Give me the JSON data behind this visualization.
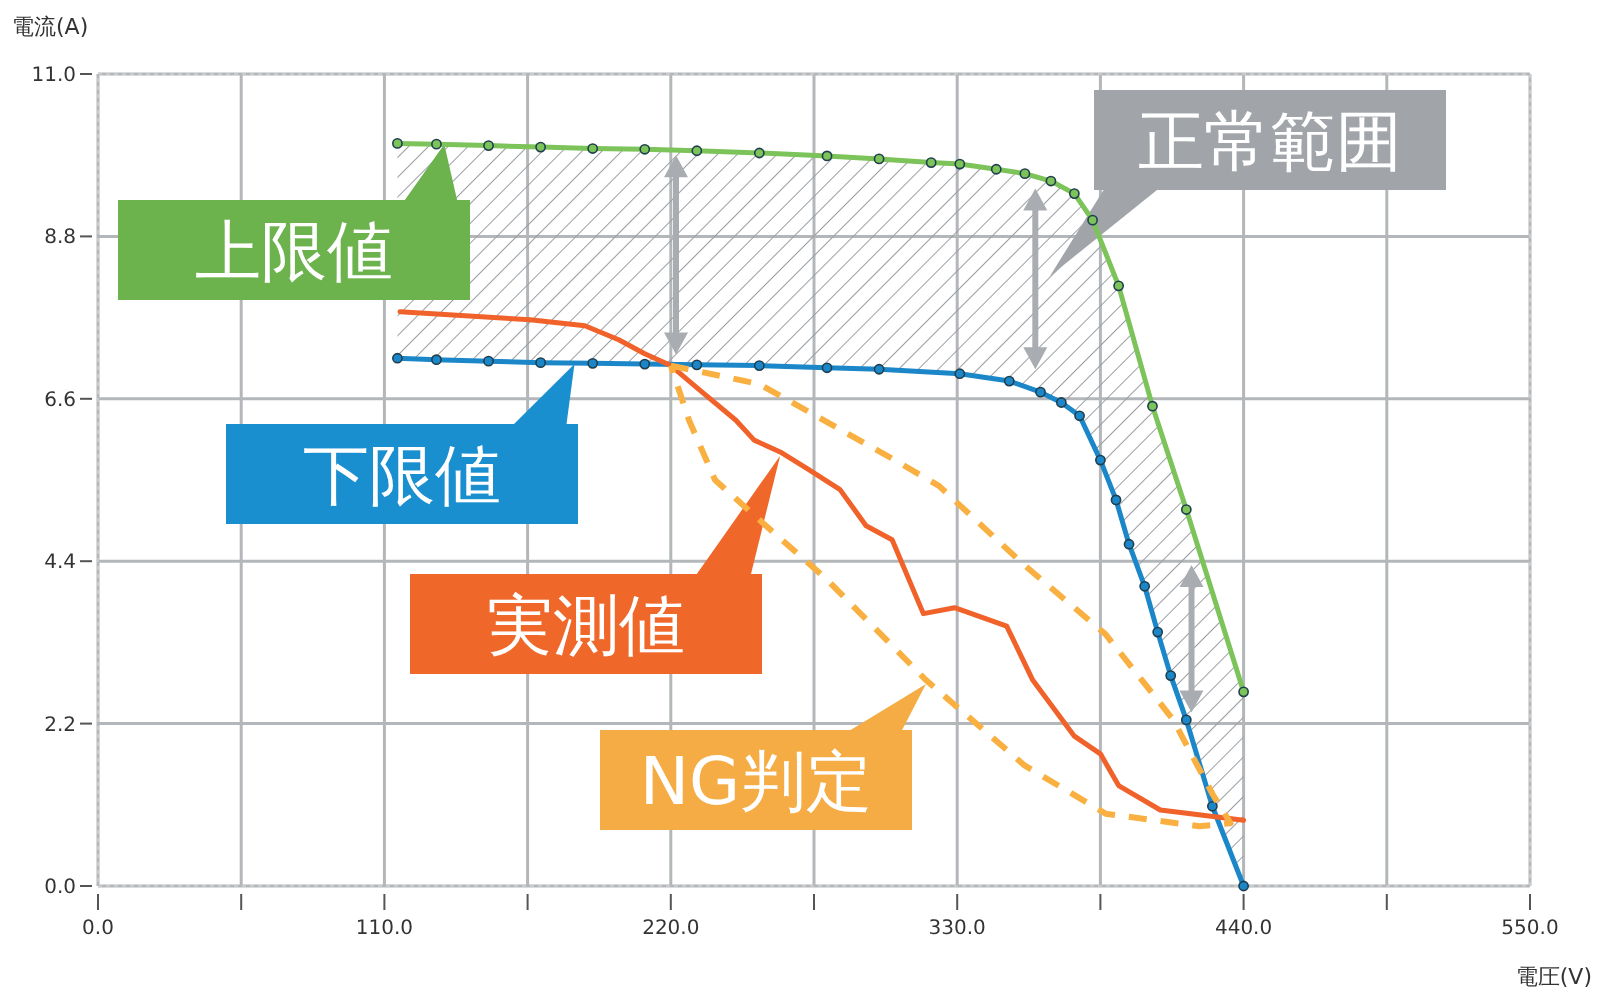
{
  "chart_data": {
    "type": "line",
    "xlabel": "電圧(V)",
    "ylabel": "電流(A)",
    "xlim": [
      0,
      550
    ],
    "ylim": [
      0,
      11
    ],
    "xticks": [
      {
        "value": 0,
        "label": "0.0"
      },
      {
        "value": 55,
        "label": null
      },
      {
        "value": 110,
        "label": "110.0"
      },
      {
        "value": 165,
        "label": null
      },
      {
        "value": 220,
        "label": "220.0"
      },
      {
        "value": 275,
        "label": null
      },
      {
        "value": 330,
        "label": "330.0"
      },
      {
        "value": 385,
        "label": null
      },
      {
        "value": 440,
        "label": "440.0"
      },
      {
        "value": 495,
        "label": null
      },
      {
        "value": 550,
        "label": "550.0"
      }
    ],
    "yticks": [
      {
        "value": 0,
        "label": "0.0"
      },
      {
        "value": 2.2,
        "label": "2.2"
      },
      {
        "value": 4.4,
        "label": "4.4"
      },
      {
        "value": 6.6,
        "label": "6.6"
      },
      {
        "value": 8.8,
        "label": "8.8"
      },
      {
        "value": 11,
        "label": "11.0"
      }
    ],
    "grid": true,
    "series": [
      {
        "color": "#7cc35a",
        "marker": "circle",
        "x": [
          115,
          130,
          150,
          170,
          190,
          210,
          230,
          254,
          280,
          300,
          320,
          331,
          345,
          356,
          366,
          375,
          382,
          392,
          405,
          418,
          440
        ],
        "values": [
          10.06,
          10.05,
          10.03,
          10.01,
          9.99,
          9.98,
          9.96,
          9.93,
          9.89,
          9.85,
          9.8,
          9.78,
          9.71,
          9.65,
          9.55,
          9.38,
          9.02,
          8.13,
          6.5,
          5.1,
          2.63
        ]
      },
      {
        "color": "#1b87c9",
        "marker": "circle",
        "x": [
          115,
          130,
          150,
          170,
          190,
          210,
          230,
          254,
          280,
          300,
          331,
          350,
          362,
          370,
          377,
          385,
          391,
          396,
          402,
          407,
          412,
          418,
          428,
          440
        ],
        "values": [
          7.15,
          7.13,
          7.11,
          7.09,
          7.08,
          7.07,
          7.06,
          7.05,
          7.02,
          7.0,
          6.94,
          6.84,
          6.69,
          6.55,
          6.37,
          5.77,
          5.23,
          4.63,
          4.06,
          3.44,
          2.85,
          2.25,
          1.08,
          0
        ]
      },
      {
        "color": "#f0622a",
        "x": [
          116,
          166,
          187,
          200,
          210,
          220,
          231,
          245,
          252,
          262,
          273,
          285,
          295,
          305,
          317,
          329,
          349,
          359,
          375,
          385,
          392,
          408,
          440
        ],
        "values": [
          7.78,
          7.67,
          7.59,
          7.4,
          7.21,
          7.05,
          6.72,
          6.31,
          6.04,
          5.88,
          5.64,
          5.37,
          4.88,
          4.69,
          3.69,
          3.77,
          3.52,
          2.79,
          2.03,
          1.79,
          1.36,
          1.03,
          0.89
        ]
      }
    ],
    "annotations": [
      {
        "text": "上限値",
        "x": 133,
        "y": 10.05
      },
      {
        "text": "下限値",
        "x": 183,
        "y": 7.07
      },
      {
        "text": "実測値",
        "x": 262,
        "y": 5.83
      },
      "NG判定",
      "正常範囲"
    ]
  }
}
